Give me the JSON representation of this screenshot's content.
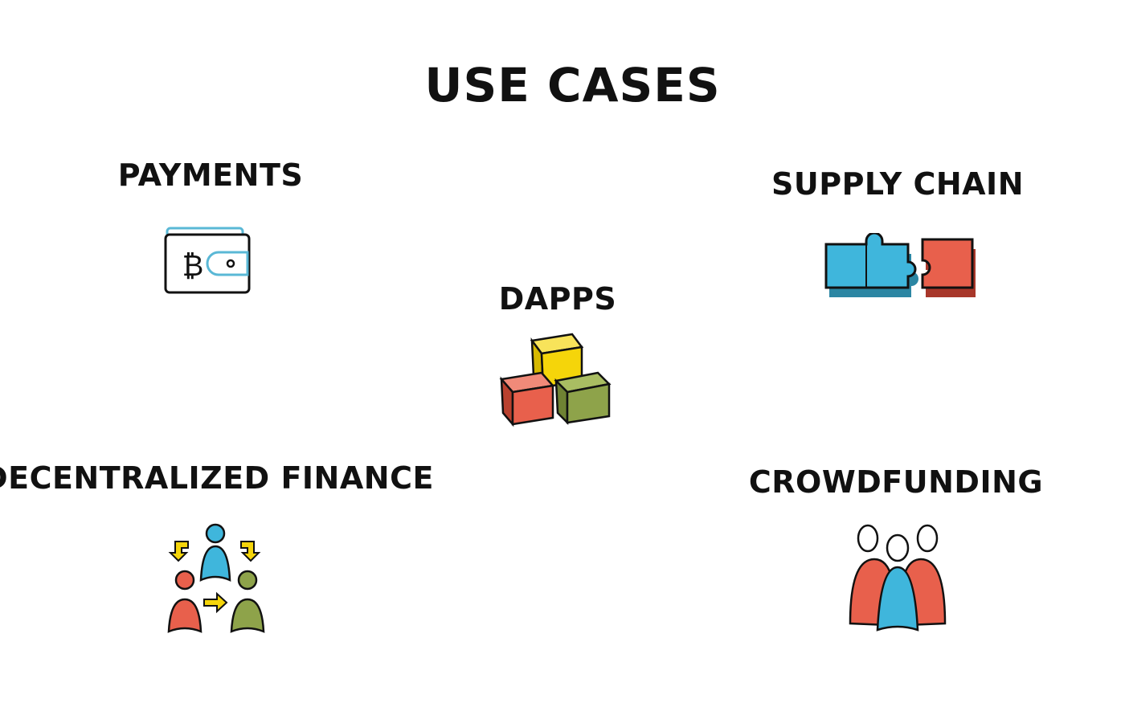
{
  "title": "USE CASES",
  "use_cases": [
    {
      "label": "PAYMENTS",
      "icon": "bitcoin-wallet-icon"
    },
    {
      "label": "SUPPLY CHAIN",
      "icon": "puzzle-pieces-icon"
    },
    {
      "label": "DAPPS",
      "icon": "blocks-icon"
    },
    {
      "label": "DECENTRALIZED FINANCE",
      "icon": "people-exchange-icon"
    },
    {
      "label": "CROWDFUNDING",
      "icon": "crowd-icon"
    }
  ],
  "colors": {
    "blue": "#3fb6dc",
    "red": "#e8604c",
    "yellow": "#f5d50a",
    "green": "#8ea34a",
    "outline": "#111111",
    "wallet_tab": "#5ab8d6"
  }
}
